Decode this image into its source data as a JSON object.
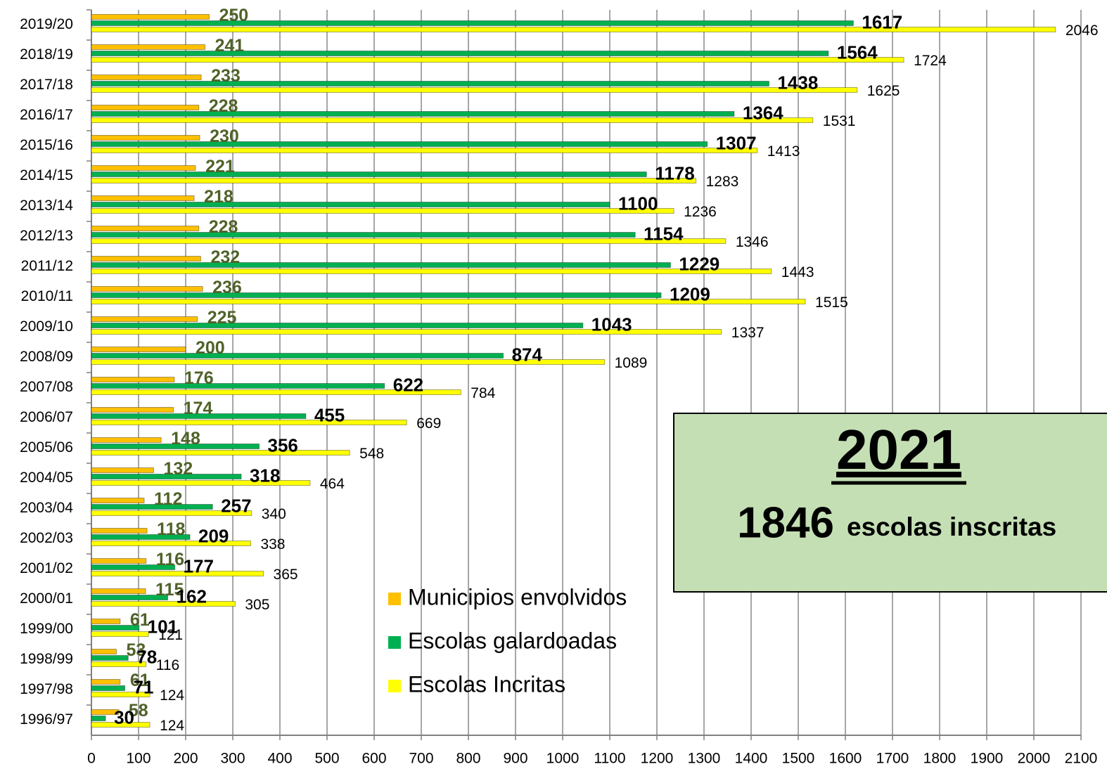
{
  "chart_data": {
    "type": "bar",
    "orientation": "horizontal",
    "categories": [
      "2019/20",
      "2018/19",
      "2017/18",
      "2016/17",
      "2015/16",
      "2014/15",
      "2013/14",
      "2012/13",
      "2011/12",
      "2010/11",
      "2009/10",
      "2008/09",
      "2007/08",
      "2006/07",
      "2005/06",
      "2004/05",
      "2003/04",
      "2002/03",
      "2001/02",
      "2000/01",
      "1999/00",
      "1998/99",
      "1997/98",
      "1996/97"
    ],
    "series": [
      {
        "name": "Municipios envolvidos",
        "color": "#ffc000",
        "values": [
          250,
          241,
          233,
          228,
          230,
          221,
          218,
          228,
          232,
          236,
          225,
          200,
          176,
          174,
          148,
          132,
          112,
          118,
          116,
          115,
          61,
          53,
          61,
          58
        ]
      },
      {
        "name": "Escolas galardoadas",
        "color": "#00b050",
        "values": [
          1617,
          1564,
          1438,
          1364,
          1307,
          1178,
          1100,
          1154,
          1229,
          1209,
          1043,
          874,
          622,
          455,
          356,
          318,
          257,
          209,
          177,
          162,
          101,
          78,
          71,
          30
        ]
      },
      {
        "name": "Escolas Incritas",
        "color": "#ffff00",
        "values": [
          2046,
          1724,
          1625,
          1531,
          1413,
          1283,
          1236,
          1346,
          1443,
          1515,
          1337,
          1089,
          784,
          669,
          548,
          464,
          340,
          338,
          365,
          305,
          121,
          116,
          124,
          124
        ]
      }
    ],
    "xlim": [
      0,
      2100
    ],
    "xticks": [
      0,
      100,
      200,
      300,
      400,
      500,
      600,
      700,
      800,
      900,
      1000,
      1100,
      1200,
      1300,
      1400,
      1500,
      1600,
      1700,
      1800,
      1900,
      2000,
      2100
    ],
    "grid": true,
    "annotation": {
      "year": "2021",
      "count": "1846",
      "text": "escolas inscritas"
    }
  }
}
